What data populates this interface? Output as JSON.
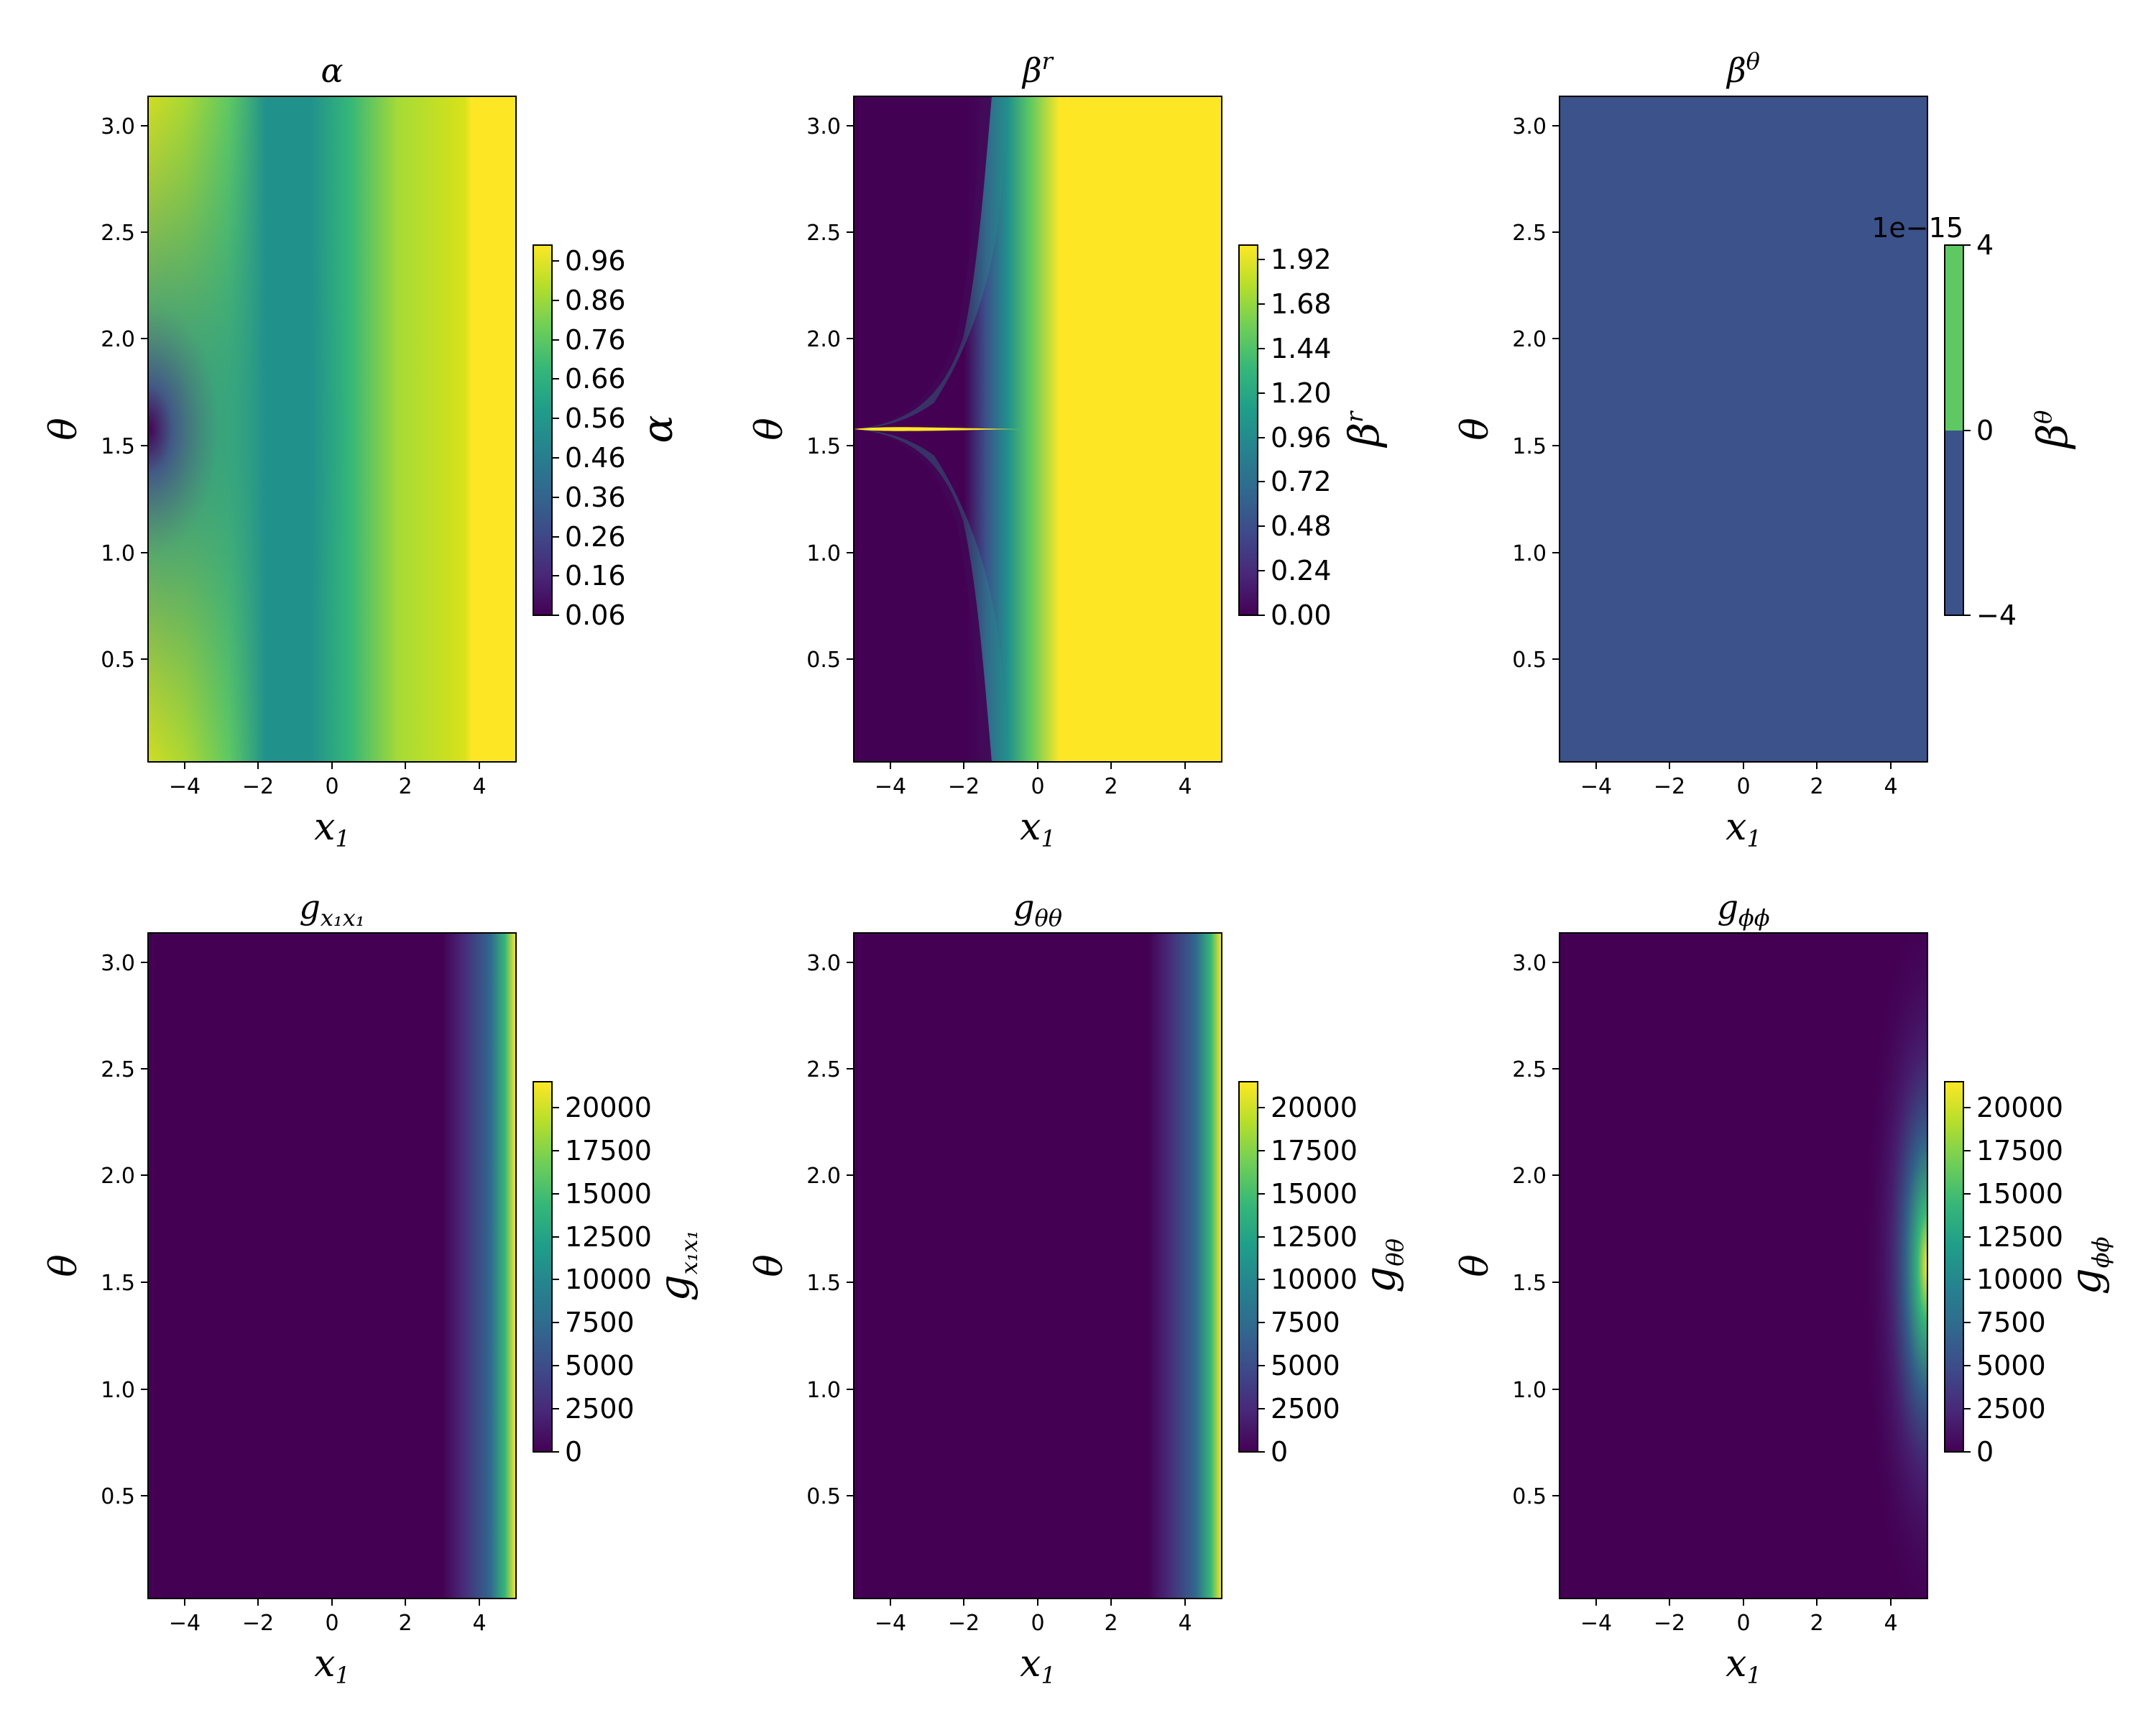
{
  "chart_data": [
    {
      "type": "heatmap",
      "title": "α",
      "xlabel": "x1",
      "ylabel": "θ",
      "colorbar_label": "α",
      "xticks": [
        "−4",
        "−2",
        "0",
        "2",
        "4"
      ],
      "yticks": [
        "0.5",
        "1.0",
        "1.5",
        "2.0",
        "2.5",
        "3.0"
      ],
      "colorbar_ticks": [
        "0.06",
        "0.16",
        "0.26",
        "0.36",
        "0.46",
        "0.56",
        "0.66",
        "0.76",
        "0.86",
        "0.96"
      ],
      "xlim": [
        -5,
        5
      ],
      "ylim": [
        0,
        3.14
      ],
      "value_range": [
        0.06,
        1.0
      ],
      "colormap": "viridis"
    },
    {
      "type": "heatmap",
      "title": "βr",
      "xlabel": "x1",
      "ylabel": "θ",
      "colorbar_label": "βr",
      "xticks": [
        "−4",
        "−2",
        "0",
        "2",
        "4"
      ],
      "yticks": [
        "0.5",
        "1.0",
        "1.5",
        "2.0",
        "2.5",
        "3.0"
      ],
      "colorbar_ticks": [
        "0.00",
        "0.24",
        "0.48",
        "0.72",
        "0.96",
        "1.20",
        "1.44",
        "1.68",
        "1.92"
      ],
      "xlim": [
        -5,
        5
      ],
      "ylim": [
        0,
        3.14
      ],
      "value_range": [
        0,
        2.0
      ],
      "colormap": "viridis"
    },
    {
      "type": "heatmap",
      "title": "βθ",
      "xlabel": "x1",
      "ylabel": "θ",
      "colorbar_label": "βθ",
      "colorbar_offset": "1e−15",
      "xticks": [
        "−4",
        "−2",
        "0",
        "2",
        "4"
      ],
      "yticks": [
        "0.5",
        "1.0",
        "1.5",
        "2.0",
        "2.5",
        "3.0"
      ],
      "colorbar_ticks": [
        "−4",
        "0",
        "4"
      ],
      "xlim": [
        -5,
        5
      ],
      "ylim": [
        0,
        3.14
      ],
      "value_range": [
        -4e-15,
        4e-15
      ],
      "colormap": "viridis",
      "field_color": "#3b528b"
    },
    {
      "type": "heatmap",
      "title": "gx1x1",
      "xlabel": "x1",
      "ylabel": "θ",
      "colorbar_label": "gx1x1",
      "xticks": [
        "−4",
        "−2",
        "0",
        "2",
        "4"
      ],
      "yticks": [
        "0.5",
        "1.0",
        "1.5",
        "2.0",
        "2.5",
        "3.0"
      ],
      "colorbar_ticks": [
        "0",
        "2500",
        "5000",
        "7500",
        "10000",
        "12500",
        "15000",
        "17500",
        "20000"
      ],
      "xlim": [
        -5,
        5
      ],
      "ylim": [
        0,
        3.14
      ],
      "value_range": [
        0,
        21500
      ],
      "colormap": "viridis"
    },
    {
      "type": "heatmap",
      "title": "gθθ",
      "xlabel": "x1",
      "ylabel": "θ",
      "colorbar_label": "gθθ",
      "xticks": [
        "−4",
        "−2",
        "0",
        "2",
        "4"
      ],
      "yticks": [
        "0.5",
        "1.0",
        "1.5",
        "2.0",
        "2.5",
        "3.0"
      ],
      "colorbar_ticks": [
        "0",
        "2500",
        "5000",
        "7500",
        "10000",
        "12500",
        "15000",
        "17500",
        "20000"
      ],
      "xlim": [
        -5,
        5
      ],
      "ylim": [
        0,
        3.14
      ],
      "value_range": [
        0,
        21500
      ],
      "colormap": "viridis"
    },
    {
      "type": "heatmap",
      "title": "gϕϕ",
      "xlabel": "x1",
      "ylabel": "θ",
      "colorbar_label": "gϕϕ",
      "xticks": [
        "−4",
        "−2",
        "0",
        "2",
        "4"
      ],
      "yticks": [
        "0.5",
        "1.0",
        "1.5",
        "2.0",
        "2.5",
        "3.0"
      ],
      "colorbar_ticks": [
        "0",
        "2500",
        "5000",
        "7500",
        "10000",
        "12500",
        "15000",
        "17500",
        "20000"
      ],
      "xlim": [
        -5,
        5
      ],
      "ylim": [
        0,
        3.14
      ],
      "value_range": [
        0,
        21500
      ],
      "colormap": "viridis"
    }
  ]
}
